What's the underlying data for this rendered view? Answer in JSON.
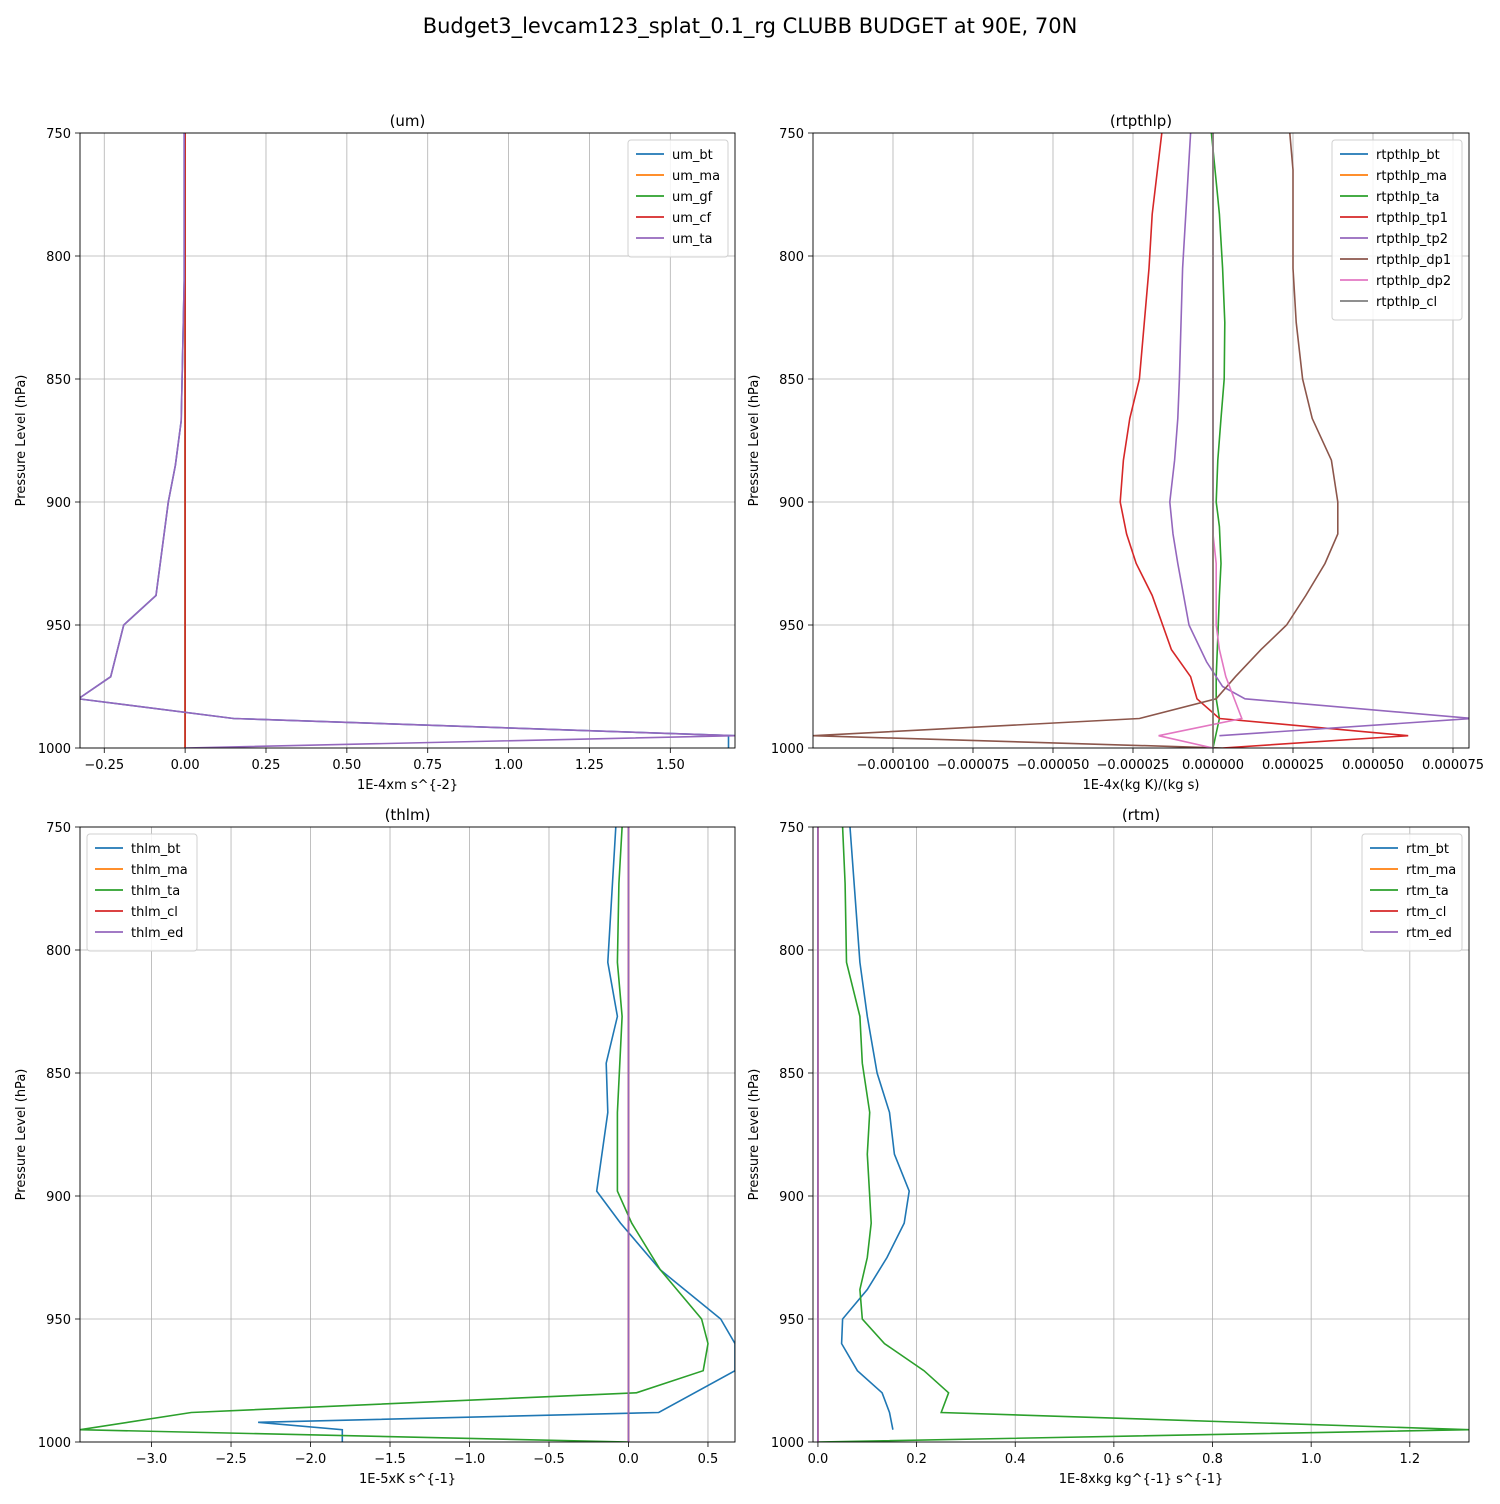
{
  "suptitle": "Budget3_levcam123_splat_0.1_rg CLUBB BUDGET at 90E, 70N",
  "chart_data": [
    {
      "type": "line",
      "title": "(um)",
      "xlabel": "1E-4xm s^{-2}",
      "ylabel": "Pressure Level (hPa)",
      "xlim": [
        -0.325,
        1.7
      ],
      "ylim": [
        750,
        1000
      ],
      "y_inverted": true,
      "grid": true,
      "legend": "top-right",
      "xticks": [
        "−0.25",
        "0.00",
        "0.25",
        "0.50",
        "0.75",
        "1.00",
        "1.25",
        "1.50"
      ],
      "xtick_values": [
        -0.25,
        0,
        0.25,
        0.5,
        0.75,
        1.0,
        1.25,
        1.5
      ],
      "yticks": [
        750,
        800,
        850,
        900,
        950,
        1000
      ],
      "series": [
        {
          "name": "um_bt",
          "color": "#1f77b4",
          "x": [
            -0.003,
            -0.003,
            -0.012,
            -0.03,
            -0.052,
            -0.09,
            -0.19,
            -0.23,
            -0.33,
            -0.33,
            0.15,
            1.7,
            1.68,
            1.68
          ],
          "y": [
            750,
            810,
            867,
            885,
            900,
            938,
            950,
            971,
            980,
            980,
            988,
            995,
            995,
            1000
          ]
        },
        {
          "name": "um_ma",
          "color": "#ff7f0e",
          "x": [
            0,
            0,
            0,
            0,
            0,
            0
          ],
          "y": [
            750,
            800,
            900,
            950,
            990,
            1000
          ]
        },
        {
          "name": "um_gf",
          "color": "#2ca02c",
          "x": [
            0,
            0,
            0,
            0,
            0,
            0
          ],
          "y": [
            750,
            800,
            900,
            950,
            990,
            1000
          ]
        },
        {
          "name": "um_cf",
          "color": "#d62728",
          "x": [
            0,
            0,
            0,
            0,
            0,
            0
          ],
          "y": [
            750,
            800,
            900,
            950,
            990,
            1000
          ]
        },
        {
          "name": "um_ta",
          "color": "#9467bd",
          "x": [
            -0.003,
            -0.003,
            -0.012,
            -0.03,
            -0.052,
            -0.09,
            -0.19,
            -0.23,
            -0.33,
            -0.33,
            0.15,
            1.7,
            0.0
          ],
          "y": [
            750,
            810,
            867,
            885,
            900,
            938,
            950,
            971,
            980,
            980,
            988,
            995,
            1000
          ]
        }
      ]
    },
    {
      "type": "line",
      "title": "(rtpthlp)",
      "xlabel": "1E-4x(kg K)/(kg s)",
      "ylabel": "Pressure Level (hPa)",
      "xlim": [
        -0.000125,
        8e-05
      ],
      "ylim": [
        750,
        1000
      ],
      "y_inverted": true,
      "grid": true,
      "legend": "top-right",
      "xticks": [
        "−0.000100",
        "−0.000075",
        "−0.000050",
        "−0.000025",
        "0.000000",
        "0.000025",
        "0.000050",
        "0.000075"
      ],
      "xtick_values": [
        -0.0001,
        -7.5e-05,
        -5e-05,
        -2.5e-05,
        0,
        2.5e-05,
        5e-05,
        7.5e-05
      ],
      "yticks": [
        750,
        800,
        850,
        900,
        950,
        1000
      ],
      "series": [
        {
          "name": "rtpthlp_bt",
          "color": "#1f77b4",
          "x": [
            0,
            0,
            0,
            0,
            0,
            0,
            0
          ],
          "y": [
            750,
            800,
            850,
            900,
            950,
            990,
            1000
          ]
        },
        {
          "name": "rtpthlp_ma",
          "color": "#ff7f0e",
          "x": [
            0,
            0,
            0,
            0,
            0,
            0,
            0
          ],
          "y": [
            750,
            800,
            850,
            900,
            950,
            990,
            1000
          ]
        },
        {
          "name": "rtpthlp_ta",
          "color": "#2ca02c",
          "x": [
            -5e-07,
            2e-06,
            3e-06,
            3.7e-06,
            3.5e-06,
            2.5e-06,
            1.5e-06,
            1e-06,
            2e-06,
            2.5e-06,
            2e-06,
            1.5e-06,
            1e-06,
            1e-06,
            2e-06,
            0
          ],
          "y": [
            750,
            783,
            805,
            827,
            850,
            866,
            883,
            900,
            910,
            925,
            938,
            955,
            971,
            980,
            988,
            1000
          ]
        },
        {
          "name": "rtpthlp_tp1",
          "color": "#d62728",
          "x": [
            -1.6e-05,
            -1.9e-05,
            -2e-05,
            -2.3e-05,
            -2.6e-05,
            -2.8e-05,
            -2.9e-05,
            -2.7e-05,
            -2.4e-05,
            -1.9e-05,
            -1.3e-05,
            -7e-06,
            -5e-06,
            2e-06,
            6.1e-05,
            3e-06
          ],
          "y": [
            750,
            783,
            805,
            850,
            866,
            883,
            900,
            913,
            925,
            938,
            960,
            971,
            980,
            988,
            995,
            1000
          ]
        },
        {
          "name": "rtpthlp_tp2",
          "color": "#9467bd",
          "x": [
            -7e-06,
            -8.5e-06,
            -9.5e-06,
            -1.05e-05,
            -1.1e-05,
            -1.2e-05,
            -1.35e-05,
            -1.25e-05,
            -1.1e-05,
            -7.5e-06,
            -2e-06,
            3e-06,
            1e-05,
            8.1e-05,
            2e-06
          ],
          "y": [
            750,
            783,
            805,
            850,
            866,
            883,
            900,
            913,
            925,
            950,
            965,
            975,
            980,
            988,
            995
          ]
        },
        {
          "name": "rtpthlp_dp1",
          "color": "#8c564b",
          "x": [
            2.4e-05,
            2.5e-05,
            2.5e-05,
            2.5e-05,
            2.6e-05,
            2.8e-05,
            3.1e-05,
            3.7e-05,
            3.9e-05,
            3.9e-05,
            3.5e-05,
            2.9e-05,
            2.3e-05,
            1.5e-05,
            7e-06,
            1e-06,
            -2.3e-05,
            -0.000125,
            3e-06
          ],
          "y": [
            750,
            765,
            783,
            805,
            827,
            850,
            866,
            883,
            900,
            913,
            925,
            938,
            950,
            960,
            971,
            980,
            988,
            995,
            1000
          ]
        },
        {
          "name": "rtpthlp_dp2",
          "color": "#e377c2",
          "x": [
            0,
            0,
            0,
            0,
            0,
            1e-06,
            1e-06,
            1e-06,
            2e-06,
            4e-06,
            9e-06,
            -1.7e-05,
            0
          ],
          "y": [
            750,
            800,
            850,
            900,
            913,
            925,
            938,
            950,
            960,
            971,
            988,
            995,
            1000
          ]
        },
        {
          "name": "rtpthlp_cl",
          "color": "#7f7f7f",
          "x": [
            0,
            0,
            0,
            0,
            0,
            0,
            0
          ],
          "y": [
            750,
            800,
            850,
            900,
            950,
            990,
            1000
          ]
        }
      ]
    },
    {
      "type": "line",
      "title": "(thlm)",
      "xlabel": "1E-5xK s^{-1}",
      "ylabel": "Pressure Level (hPa)",
      "xlim": [
        -3.45,
        0.67
      ],
      "ylim": [
        750,
        1000
      ],
      "y_inverted": true,
      "grid": true,
      "legend": "top-left",
      "xticks": [
        "−3.0",
        "−2.5",
        "−2.0",
        "−1.5",
        "−1.0",
        "−0.5",
        "0.0",
        "0.5"
      ],
      "xtick_values": [
        -3.0,
        -2.5,
        -2.0,
        -1.5,
        -1.0,
        -0.5,
        0.0,
        0.5
      ],
      "yticks": [
        750,
        800,
        850,
        900,
        950,
        1000
      ],
      "series": [
        {
          "name": "thlm_bt",
          "color": "#1f77b4",
          "x": [
            -0.08,
            -0.13,
            -0.07,
            -0.14,
            -0.13,
            -0.2,
            -0.05,
            0.2,
            0.58,
            0.67,
            0.67,
            0.19,
            -2.33,
            -1.8,
            -1.8
          ],
          "y": [
            750,
            805,
            827,
            846,
            866,
            898,
            911,
            930,
            950,
            960,
            971,
            988,
            992,
            995,
            1000
          ]
        },
        {
          "name": "thlm_ma",
          "color": "#ff7f0e",
          "x": [
            0,
            0,
            0,
            0,
            0,
            0
          ],
          "y": [
            750,
            800,
            850,
            900,
            950,
            1000
          ]
        },
        {
          "name": "thlm_ta",
          "color": "#2ca02c",
          "x": [
            -0.04,
            -0.06,
            -0.07,
            -0.04,
            -0.07,
            -0.07,
            0.02,
            0.2,
            0.46,
            0.5,
            0.47,
            0.05,
            -2.75,
            -3.45,
            0.0
          ],
          "y": [
            750,
            773,
            805,
            827,
            866,
            898,
            911,
            930,
            950,
            960,
            971,
            980,
            988,
            995,
            1000
          ]
        },
        {
          "name": "thlm_cl",
          "color": "#d62728",
          "x": [
            0,
            0,
            0,
            0,
            0,
            0
          ],
          "y": [
            750,
            800,
            850,
            900,
            950,
            1000
          ]
        },
        {
          "name": "thlm_ed",
          "color": "#9467bd",
          "x": [
            0,
            0,
            0,
            0,
            0,
            0
          ],
          "y": [
            750,
            800,
            850,
            900,
            950,
            1000
          ]
        }
      ]
    },
    {
      "type": "line",
      "title": "(rtm)",
      "xlabel": "1E-8xkg kg^{-1} s^{-1}",
      "ylabel": "Pressure Level (hPa)",
      "xlim": [
        -0.01,
        1.32
      ],
      "ylim": [
        750,
        1000
      ],
      "y_inverted": true,
      "grid": true,
      "legend": "top-right",
      "xticks": [
        "0.0",
        "0.2",
        "0.4",
        "0.6",
        "0.8",
        "1.0",
        "1.2"
      ],
      "xtick_values": [
        0.0,
        0.2,
        0.4,
        0.6,
        0.8,
        1.0,
        1.2
      ],
      "yticks": [
        750,
        800,
        850,
        900,
        950,
        1000
      ],
      "series": [
        {
          "name": "rtm_bt",
          "color": "#1f77b4",
          "x": [
            0.065,
            0.085,
            0.1,
            0.12,
            0.145,
            0.155,
            0.185,
            0.175,
            0.14,
            0.1,
            0.05,
            0.048,
            0.08,
            0.13,
            0.145,
            0.152
          ],
          "y": [
            750,
            805,
            827,
            850,
            866,
            883,
            898,
            911,
            925,
            938,
            950,
            960,
            971,
            980,
            988,
            995
          ]
        },
        {
          "name": "rtm_ma",
          "color": "#ff7f0e",
          "x": [
            0,
            0,
            0,
            0,
            0,
            0
          ],
          "y": [
            750,
            800,
            850,
            900,
            950,
            1000
          ]
        },
        {
          "name": "rtm_ta",
          "color": "#2ca02c",
          "x": [
            0.05,
            0.055,
            0.058,
            0.085,
            0.09,
            0.105,
            0.1,
            0.105,
            0.108,
            0.1,
            0.085,
            0.09,
            0.135,
            0.215,
            0.265,
            0.25,
            1.32,
            0.0
          ],
          "y": [
            750,
            773,
            805,
            827,
            846,
            866,
            883,
            900,
            911,
            925,
            938,
            950,
            960,
            971,
            980,
            988,
            995,
            1000
          ]
        },
        {
          "name": "rtm_cl",
          "color": "#d62728",
          "x": [
            0,
            0,
            0,
            0,
            0,
            0
          ],
          "y": [
            750,
            800,
            850,
            900,
            950,
            1000
          ]
        },
        {
          "name": "rtm_ed",
          "color": "#9467bd",
          "x": [
            0,
            0,
            0,
            0,
            0,
            0
          ],
          "y": [
            750,
            800,
            850,
            900,
            950,
            1000
          ]
        }
      ]
    }
  ]
}
